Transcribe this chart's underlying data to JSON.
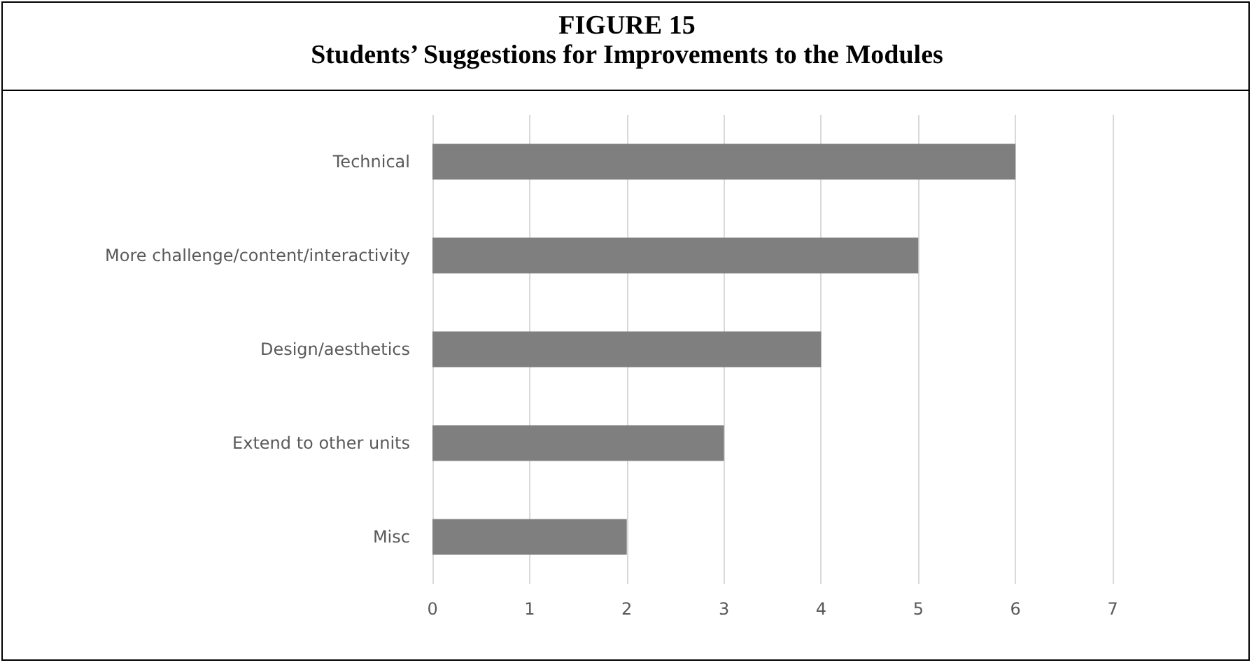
{
  "chart_data": {
    "type": "bar",
    "orientation": "horizontal",
    "title": "FIGURE 15",
    "subtitle": "Students’ Suggestions for Improvements to the Modules",
    "categories": [
      "Technical",
      "More challenge/content/interactivity",
      "Design/aesthetics",
      "Extend to other units",
      "Misc"
    ],
    "values": [
      6,
      5,
      4,
      3,
      2
    ],
    "color": "#7f7f7f",
    "xlim": [
      0,
      7
    ],
    "xticks": [
      0,
      1,
      2,
      3,
      4,
      5,
      6,
      7
    ],
    "grid": "x"
  }
}
